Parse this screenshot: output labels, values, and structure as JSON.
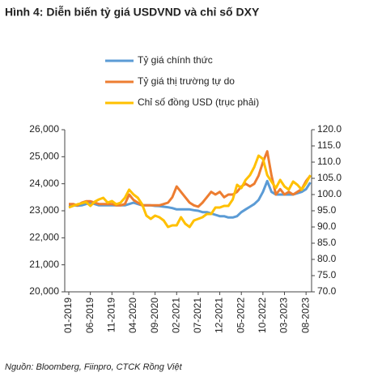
{
  "chart_data": {
    "type": "line",
    "title": "Hình 4: Diễn biến tỷ giá USDVND và chỉ số DXY",
    "source": "Nguồn: Bloomberg, Fiinpro, CTCK Rồng Việt",
    "categories": [
      "01-2019",
      null,
      null,
      null,
      null,
      "06-2019",
      null,
      null,
      null,
      null,
      "11-2019",
      null,
      null,
      null,
      null,
      "04-2020",
      null,
      null,
      null,
      null,
      "09-2020",
      null,
      null,
      null,
      null,
      "02-2021",
      null,
      null,
      null,
      null,
      "07-2021",
      null,
      null,
      null,
      null,
      "12-2021",
      null,
      null,
      null,
      null,
      "05-2022",
      null,
      null,
      null,
      null,
      "10-2022",
      null,
      null,
      null,
      null,
      "03-2023",
      null,
      null,
      null,
      null,
      "08-2023",
      null
    ],
    "series": [
      {
        "name": "Tỷ giá chính thức",
        "color": "#5b9bd5",
        "values": [
          23200,
          23200,
          23190,
          23200,
          23250,
          23300,
          23250,
          23200,
          23200,
          23200,
          23200,
          23200,
          23200,
          23200,
          23250,
          23300,
          23250,
          23200,
          23200,
          23200,
          23180,
          23170,
          23150,
          23130,
          23100,
          23050,
          23050,
          23050,
          23050,
          23020,
          23000,
          22950,
          22950,
          22900,
          22850,
          22800,
          22800,
          22750,
          22750,
          22800,
          22950,
          23050,
          23150,
          23250,
          23400,
          23700,
          24100,
          23700,
          23600,
          23600,
          23600,
          23600,
          23600,
          23650,
          23700,
          23800,
          24050
        ]
      },
      {
        "name": "Tỷ giá thị trường tự do",
        "color": "#ed7d31",
        "values": [
          23250,
          23250,
          23200,
          23300,
          23350,
          23350,
          23300,
          23250,
          23250,
          23250,
          23250,
          23200,
          23200,
          23250,
          23600,
          23400,
          23300,
          23200,
          23200,
          23200,
          23200,
          23200,
          23250,
          23300,
          23500,
          23900,
          23700,
          23500,
          23300,
          23200,
          23150,
          23300,
          23500,
          23700,
          23600,
          23700,
          23500,
          23600,
          23600,
          23700,
          23900,
          24000,
          23900,
          24000,
          24300,
          24800,
          25200,
          24300,
          23600,
          23800,
          23600,
          23700,
          23600,
          23700,
          23800,
          24100,
          24300
        ]
      },
      {
        "name": "Chỉ số đồng USD (trục phải)",
        "color": "#ffc000",
        "axis": "y2",
        "values": [
          96.0,
          96.5,
          97.0,
          97.3,
          97.7,
          96.5,
          97.8,
          98.5,
          99.0,
          97.5,
          98.0,
          97.0,
          97.5,
          99.0,
          101.5,
          100.0,
          99.0,
          97.0,
          93.5,
          92.5,
          93.5,
          93.0,
          92.0,
          90.0,
          90.5,
          90.5,
          93.0,
          91.0,
          90.0,
          92.0,
          92.5,
          93.0,
          94.0,
          94.0,
          96.0,
          96.0,
          96.5,
          96.5,
          98.5,
          103.0,
          102.0,
          104.5,
          106.0,
          108.5,
          112.0,
          111.0,
          106.0,
          104.0,
          102.0,
          104.5,
          102.5,
          101.5,
          104.0,
          103.0,
          101.5,
          103.5,
          106.0
        ]
      }
    ],
    "ylim": [
      20000,
      26000
    ],
    "yticks": [
      {
        "value": 20000,
        "label": "20,000"
      },
      {
        "value": 21000,
        "label": "21,000"
      },
      {
        "value": 22000,
        "label": "22,000"
      },
      {
        "value": 23000,
        "label": "23,000"
      },
      {
        "value": 24000,
        "label": "24,000"
      },
      {
        "value": 25000,
        "label": "25,000"
      },
      {
        "value": 26000,
        "label": "26,000"
      }
    ],
    "y2lim": [
      70,
      120
    ],
    "y2ticks": [
      {
        "value": 70,
        "label": "70.0"
      },
      {
        "value": 75,
        "label": "75.0"
      },
      {
        "value": 80,
        "label": "80.0"
      },
      {
        "value": 85,
        "label": "85.0"
      },
      {
        "value": 90,
        "label": "90.0"
      },
      {
        "value": 95,
        "label": "95.0"
      },
      {
        "value": 100,
        "label": "100.0"
      },
      {
        "value": 105,
        "label": "105.0"
      },
      {
        "value": 110,
        "label": "110.0"
      },
      {
        "value": 115,
        "label": "115.0"
      },
      {
        "value": 120,
        "label": "120.0"
      }
    ],
    "grid": false
  }
}
